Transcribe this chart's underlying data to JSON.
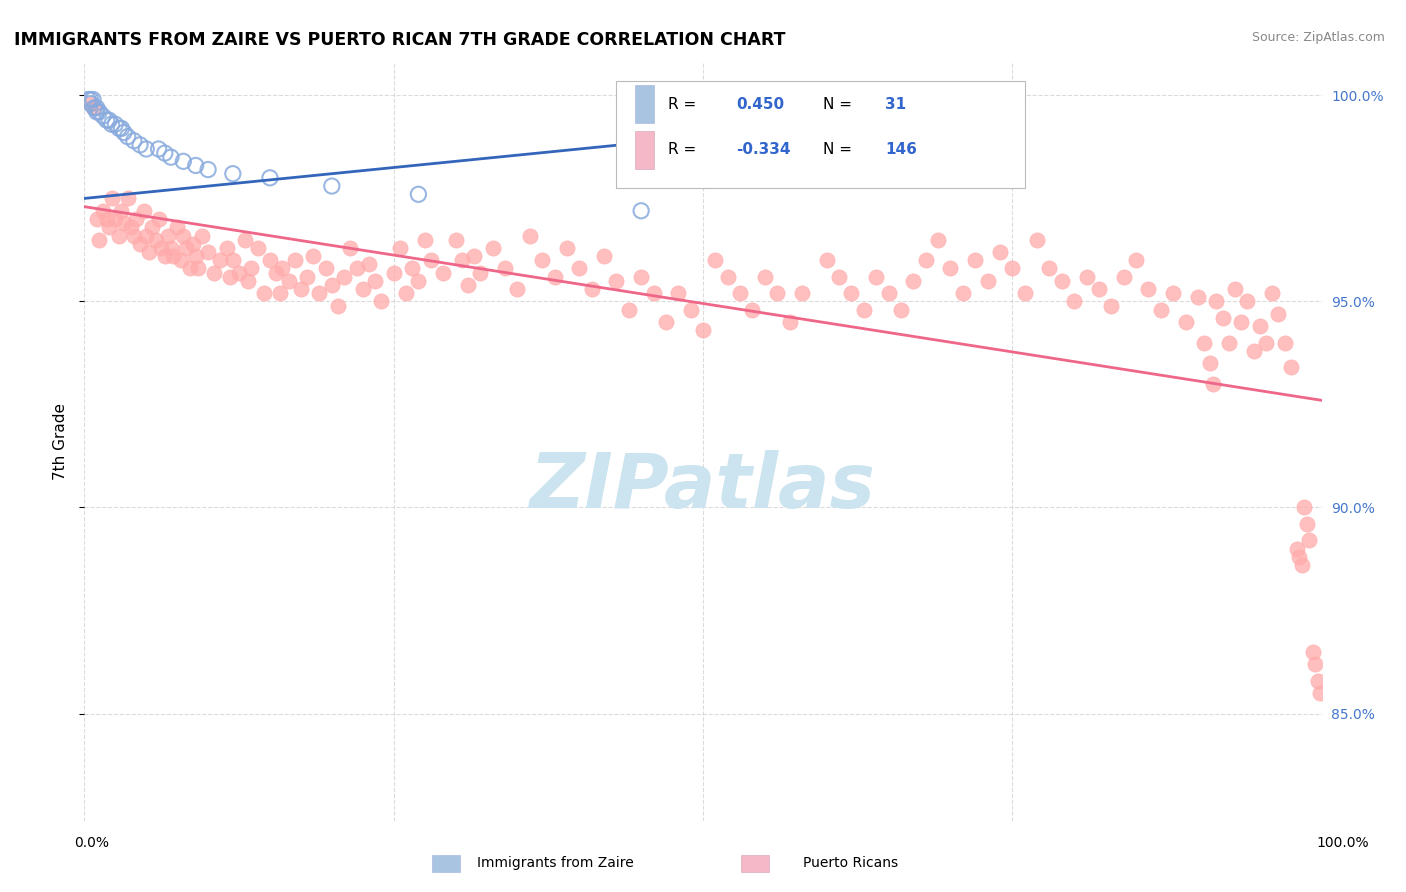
{
  "title": "IMMIGRANTS FROM ZAIRE VS PUERTO RICAN 7TH GRADE CORRELATION CHART",
  "source": "Source: ZipAtlas.com",
  "ylabel": "7th Grade",
  "xlim": [
    0.0,
    1.0
  ],
  "ylim_min": 0.824,
  "ylim_max": 1.008,
  "right_yticks": [
    0.85,
    0.9,
    0.95,
    1.0
  ],
  "right_yticklabels": [
    "85.0%",
    "90.0%",
    "95.0%",
    "100.0%"
  ],
  "background_color": "#ffffff",
  "grid_color": "#cccccc",
  "blue_line_color": "#3366bb",
  "pink_line_color": "#ee6688",
  "blue_scatter_color": "#88aadd",
  "pink_scatter_color": "#ffaaaa",
  "watermark": "ZIPatlas",
  "watermark_color": "#cce4f0",
  "blue_scatter": [
    [
      0.003,
      0.999
    ],
    [
      0.005,
      0.999
    ],
    [
      0.005,
      0.998
    ],
    [
      0.007,
      0.999
    ],
    [
      0.008,
      0.997
    ],
    [
      0.01,
      0.997
    ],
    [
      0.01,
      0.996
    ],
    [
      0.012,
      0.996
    ],
    [
      0.015,
      0.995
    ],
    [
      0.018,
      0.994
    ],
    [
      0.02,
      0.994
    ],
    [
      0.022,
      0.993
    ],
    [
      0.025,
      0.993
    ],
    [
      0.028,
      0.992
    ],
    [
      0.03,
      0.992
    ],
    [
      0.032,
      0.991
    ],
    [
      0.035,
      0.99
    ],
    [
      0.04,
      0.989
    ],
    [
      0.045,
      0.988
    ],
    [
      0.05,
      0.987
    ],
    [
      0.06,
      0.987
    ],
    [
      0.065,
      0.986
    ],
    [
      0.07,
      0.985
    ],
    [
      0.08,
      0.984
    ],
    [
      0.09,
      0.983
    ],
    [
      0.1,
      0.982
    ],
    [
      0.12,
      0.981
    ],
    [
      0.15,
      0.98
    ],
    [
      0.2,
      0.978
    ],
    [
      0.27,
      0.976
    ],
    [
      0.45,
      0.972
    ]
  ],
  "pink_scatter": [
    [
      0.005,
      0.998
    ],
    [
      0.008,
      0.997
    ],
    [
      0.01,
      0.97
    ],
    [
      0.012,
      0.965
    ],
    [
      0.015,
      0.972
    ],
    [
      0.018,
      0.97
    ],
    [
      0.02,
      0.968
    ],
    [
      0.022,
      0.975
    ],
    [
      0.025,
      0.97
    ],
    [
      0.028,
      0.966
    ],
    [
      0.03,
      0.972
    ],
    [
      0.032,
      0.969
    ],
    [
      0.035,
      0.975
    ],
    [
      0.038,
      0.968
    ],
    [
      0.04,
      0.966
    ],
    [
      0.042,
      0.97
    ],
    [
      0.045,
      0.964
    ],
    [
      0.048,
      0.972
    ],
    [
      0.05,
      0.966
    ],
    [
      0.052,
      0.962
    ],
    [
      0.055,
      0.968
    ],
    [
      0.058,
      0.965
    ],
    [
      0.06,
      0.97
    ],
    [
      0.062,
      0.963
    ],
    [
      0.065,
      0.961
    ],
    [
      0.068,
      0.966
    ],
    [
      0.07,
      0.963
    ],
    [
      0.072,
      0.961
    ],
    [
      0.075,
      0.968
    ],
    [
      0.078,
      0.96
    ],
    [
      0.08,
      0.966
    ],
    [
      0.082,
      0.963
    ],
    [
      0.085,
      0.958
    ],
    [
      0.088,
      0.964
    ],
    [
      0.09,
      0.961
    ],
    [
      0.092,
      0.958
    ],
    [
      0.095,
      0.966
    ],
    [
      0.1,
      0.962
    ],
    [
      0.105,
      0.957
    ],
    [
      0.11,
      0.96
    ],
    [
      0.115,
      0.963
    ],
    [
      0.118,
      0.956
    ],
    [
      0.12,
      0.96
    ],
    [
      0.125,
      0.957
    ],
    [
      0.13,
      0.965
    ],
    [
      0.132,
      0.955
    ],
    [
      0.135,
      0.958
    ],
    [
      0.14,
      0.963
    ],
    [
      0.145,
      0.952
    ],
    [
      0.15,
      0.96
    ],
    [
      0.155,
      0.957
    ],
    [
      0.158,
      0.952
    ],
    [
      0.16,
      0.958
    ],
    [
      0.165,
      0.955
    ],
    [
      0.17,
      0.96
    ],
    [
      0.175,
      0.953
    ],
    [
      0.18,
      0.956
    ],
    [
      0.185,
      0.961
    ],
    [
      0.19,
      0.952
    ],
    [
      0.195,
      0.958
    ],
    [
      0.2,
      0.954
    ],
    [
      0.205,
      0.949
    ],
    [
      0.21,
      0.956
    ],
    [
      0.215,
      0.963
    ],
    [
      0.22,
      0.958
    ],
    [
      0.225,
      0.953
    ],
    [
      0.23,
      0.959
    ],
    [
      0.235,
      0.955
    ],
    [
      0.24,
      0.95
    ],
    [
      0.25,
      0.957
    ],
    [
      0.255,
      0.963
    ],
    [
      0.26,
      0.952
    ],
    [
      0.265,
      0.958
    ],
    [
      0.27,
      0.955
    ],
    [
      0.275,
      0.965
    ],
    [
      0.28,
      0.96
    ],
    [
      0.29,
      0.957
    ],
    [
      0.3,
      0.965
    ],
    [
      0.305,
      0.96
    ],
    [
      0.31,
      0.954
    ],
    [
      0.315,
      0.961
    ],
    [
      0.32,
      0.957
    ],
    [
      0.33,
      0.963
    ],
    [
      0.34,
      0.958
    ],
    [
      0.35,
      0.953
    ],
    [
      0.36,
      0.966
    ],
    [
      0.37,
      0.96
    ],
    [
      0.38,
      0.956
    ],
    [
      0.39,
      0.963
    ],
    [
      0.4,
      0.958
    ],
    [
      0.41,
      0.953
    ],
    [
      0.42,
      0.961
    ],
    [
      0.43,
      0.955
    ],
    [
      0.44,
      0.948
    ],
    [
      0.45,
      0.956
    ],
    [
      0.46,
      0.952
    ],
    [
      0.47,
      0.945
    ],
    [
      0.48,
      0.952
    ],
    [
      0.49,
      0.948
    ],
    [
      0.5,
      0.943
    ],
    [
      0.51,
      0.96
    ],
    [
      0.52,
      0.956
    ],
    [
      0.53,
      0.952
    ],
    [
      0.54,
      0.948
    ],
    [
      0.55,
      0.956
    ],
    [
      0.56,
      0.952
    ],
    [
      0.57,
      0.945
    ],
    [
      0.58,
      0.952
    ],
    [
      0.6,
      0.96
    ],
    [
      0.61,
      0.956
    ],
    [
      0.62,
      0.952
    ],
    [
      0.63,
      0.948
    ],
    [
      0.64,
      0.956
    ],
    [
      0.65,
      0.952
    ],
    [
      0.66,
      0.948
    ],
    [
      0.67,
      0.955
    ],
    [
      0.68,
      0.96
    ],
    [
      0.69,
      0.965
    ],
    [
      0.7,
      0.958
    ],
    [
      0.71,
      0.952
    ],
    [
      0.72,
      0.96
    ],
    [
      0.73,
      0.955
    ],
    [
      0.74,
      0.962
    ],
    [
      0.75,
      0.958
    ],
    [
      0.76,
      0.952
    ],
    [
      0.77,
      0.965
    ],
    [
      0.78,
      0.958
    ],
    [
      0.79,
      0.955
    ],
    [
      0.8,
      0.95
    ],
    [
      0.81,
      0.956
    ],
    [
      0.82,
      0.953
    ],
    [
      0.83,
      0.949
    ],
    [
      0.84,
      0.956
    ],
    [
      0.85,
      0.96
    ],
    [
      0.86,
      0.953
    ],
    [
      0.87,
      0.948
    ],
    [
      0.88,
      0.952
    ],
    [
      0.89,
      0.945
    ],
    [
      0.9,
      0.951
    ],
    [
      0.905,
      0.94
    ],
    [
      0.91,
      0.935
    ],
    [
      0.912,
      0.93
    ],
    [
      0.915,
      0.95
    ],
    [
      0.92,
      0.946
    ],
    [
      0.925,
      0.94
    ],
    [
      0.93,
      0.953
    ],
    [
      0.935,
      0.945
    ],
    [
      0.94,
      0.95
    ],
    [
      0.945,
      0.938
    ],
    [
      0.95,
      0.944
    ],
    [
      0.955,
      0.94
    ],
    [
      0.96,
      0.952
    ],
    [
      0.965,
      0.947
    ],
    [
      0.97,
      0.94
    ],
    [
      0.975,
      0.934
    ],
    [
      0.98,
      0.89
    ],
    [
      0.982,
      0.888
    ],
    [
      0.984,
      0.886
    ],
    [
      0.986,
      0.9
    ],
    [
      0.988,
      0.896
    ],
    [
      0.99,
      0.892
    ],
    [
      0.993,
      0.865
    ],
    [
      0.995,
      0.862
    ],
    [
      0.997,
      0.858
    ],
    [
      0.999,
      0.855
    ]
  ],
  "blue_regr": [
    0.0,
    0.5,
    0.975,
    0.99
  ],
  "pink_regr": [
    0.0,
    1.0,
    0.973,
    0.926
  ]
}
